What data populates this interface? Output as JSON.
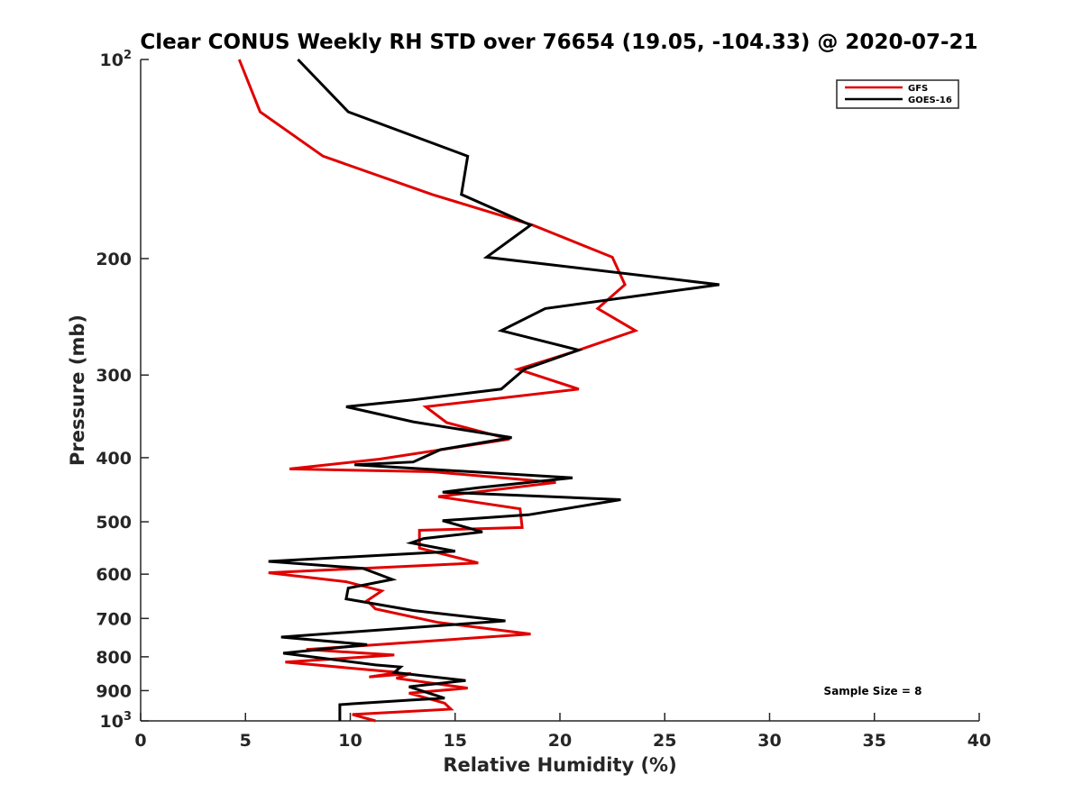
{
  "chart_data": {
    "type": "line",
    "title": "Clear CONUS Weekly RH STD over 76654 (19.05, -104.33) @ 2020-07-21",
    "xlabel": "Relative Humidity (%)",
    "ylabel": "Pressure (mb)",
    "xlim": [
      0,
      40
    ],
    "ylim": [
      100,
      1000
    ],
    "yscale": "log",
    "yreversed": true,
    "grid": false,
    "xticks": [
      0,
      5,
      10,
      15,
      20,
      25,
      30,
      35,
      40
    ],
    "xtick_labels": [
      "0",
      "5",
      "10",
      "15",
      "20",
      "25",
      "30",
      "35",
      "40"
    ],
    "yticks": [
      100,
      200,
      300,
      400,
      500,
      600,
      700,
      800,
      900,
      1000
    ],
    "ytick_labels": [
      {
        "base": "10",
        "sup": "2"
      },
      {
        "base": "200",
        "sup": ""
      },
      {
        "base": "300",
        "sup": ""
      },
      {
        "base": "400",
        "sup": ""
      },
      {
        "base": "500",
        "sup": ""
      },
      {
        "base": "600",
        "sup": ""
      },
      {
        "base": "700",
        "sup": ""
      },
      {
        "base": "800",
        "sup": ""
      },
      {
        "base": "900",
        "sup": ""
      },
      {
        "base": "10",
        "sup": "3"
      }
    ],
    "legend": {
      "position": "top-right",
      "entries": [
        "GFS",
        "GOES-16"
      ]
    },
    "annotation": "Sample Size = 8",
    "series": [
      {
        "name": "GFS",
        "color": "#e00000",
        "points": [
          [
            4.7,
            100
          ],
          [
            5.7,
            120
          ],
          [
            8.7,
            140
          ],
          [
            13.9,
            160
          ],
          [
            18.7,
            178
          ],
          [
            22.5,
            199
          ],
          [
            23.1,
            219
          ],
          [
            21.8,
            238
          ],
          [
            23.6,
            257
          ],
          [
            20.6,
            277
          ],
          [
            18.0,
            294
          ],
          [
            20.9,
            315
          ],
          [
            13.6,
            335
          ],
          [
            14.6,
            354
          ],
          [
            17.6,
            375
          ],
          [
            11.4,
            402
          ],
          [
            7.1,
            416
          ],
          [
            13.9,
            420
          ],
          [
            19.8,
            436
          ],
          [
            14.2,
            458
          ],
          [
            18.1,
            478
          ],
          [
            18.2,
            510
          ],
          [
            13.3,
            515
          ],
          [
            13.3,
            548
          ],
          [
            16.1,
            577
          ],
          [
            6.1,
            597
          ],
          [
            9.8,
            616
          ],
          [
            11.5,
            636
          ],
          [
            10.8,
            658
          ],
          [
            11.2,
            677
          ],
          [
            14.2,
            710
          ],
          [
            18.6,
            739
          ],
          [
            7.9,
            780
          ],
          [
            12.1,
            795
          ],
          [
            6.9,
            815
          ],
          [
            12.3,
            845
          ],
          [
            10.9,
            858
          ],
          [
            12.9,
            848
          ],
          [
            12.2,
            862
          ],
          [
            15.6,
            892
          ],
          [
            12.8,
            908
          ],
          [
            14.5,
            940
          ],
          [
            14.8,
            960
          ],
          [
            10.1,
            978
          ],
          [
            11.2,
            1000
          ]
        ]
      },
      {
        "name": "GOES-16",
        "color": "#000000",
        "points": [
          [
            7.5,
            100
          ],
          [
            9.9,
            120
          ],
          [
            15.6,
            140
          ],
          [
            15.3,
            160
          ],
          [
            18.6,
            178
          ],
          [
            16.5,
            199
          ],
          [
            27.6,
            219
          ],
          [
            19.3,
            238
          ],
          [
            17.2,
            257
          ],
          [
            20.9,
            275
          ],
          [
            18.3,
            294
          ],
          [
            17.2,
            315
          ],
          [
            13.0,
            327
          ],
          [
            9.8,
            335
          ],
          [
            13.0,
            353
          ],
          [
            17.7,
            373
          ],
          [
            14.3,
            389
          ],
          [
            13.0,
            406
          ],
          [
            10.2,
            410
          ],
          [
            20.6,
            429
          ],
          [
            16.1,
            444
          ],
          [
            14.4,
            451
          ],
          [
            22.9,
            463
          ],
          [
            18.5,
            488
          ],
          [
            14.4,
            498
          ],
          [
            16.3,
            518
          ],
          [
            13.5,
            530
          ],
          [
            12.9,
            538
          ],
          [
            15.0,
            554
          ],
          [
            6.1,
            574
          ],
          [
            10.6,
            588
          ],
          [
            12.0,
            611
          ],
          [
            9.9,
            630
          ],
          [
            9.8,
            654
          ],
          [
            13.0,
            681
          ],
          [
            17.4,
            706
          ],
          [
            6.7,
            747
          ],
          [
            10.8,
            767
          ],
          [
            6.8,
            790
          ],
          [
            11.2,
            823
          ],
          [
            12.4,
            829
          ],
          [
            12.1,
            845
          ],
          [
            15.5,
            869
          ],
          [
            12.8,
            888
          ],
          [
            14.5,
            924
          ],
          [
            12.9,
            930
          ],
          [
            10.1,
            942
          ],
          [
            9.5,
            945
          ],
          [
            9.5,
            1000
          ]
        ]
      }
    ]
  }
}
